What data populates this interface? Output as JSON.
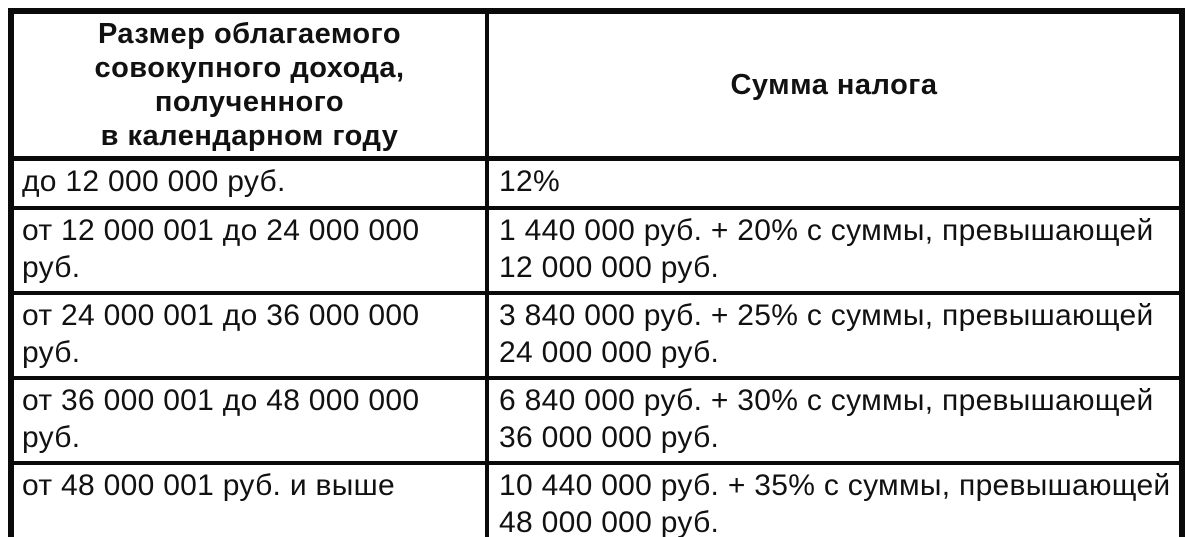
{
  "table": {
    "headers": {
      "income": "Размер облагаемого\nсовокупного дохода,\nполученного\nв календарном году",
      "tax": "Сумма налога"
    },
    "rows": [
      {
        "income": "до 12 000 000 руб.",
        "tax": "12%"
      },
      {
        "income": "от 12 000 001 до 24 000 000 руб.",
        "tax": "1 440 000 руб. + 20% с суммы, превышающей\n12 000 000 руб."
      },
      {
        "income": "от 24 000 001 до 36 000 000 руб.",
        "tax": "3 840 000 руб. + 25% с суммы, превышающей\n24 000 000 руб."
      },
      {
        "income": "от 36 000 001 до 48 000 000 руб.",
        "tax": "6 840 000 руб. + 30% с суммы, превышающей\n36 000 000 руб."
      },
      {
        "income": "от 48 000 001 руб. и выше",
        "tax": "10 440 000 руб. + 35% с суммы, превышающей\n48 000 000 руб."
      }
    ],
    "colors": {
      "ink": "#111111",
      "paper": "#ffffff"
    }
  }
}
